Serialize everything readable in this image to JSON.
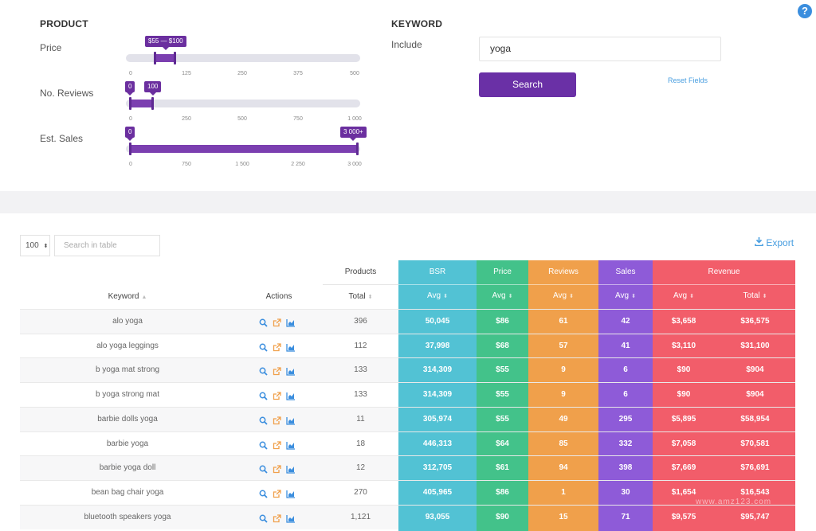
{
  "filters": {
    "product_title": "PRODUCT",
    "price": {
      "label": "Price",
      "bubble": "$55 — $100",
      "ticks": [
        "0",
        "125",
        "250",
        "375",
        "500"
      ],
      "range": [
        55,
        100
      ],
      "max": 500
    },
    "reviews": {
      "label": "No. Reviews",
      "bubble_min": "0",
      "bubble_max": "100",
      "ticks": [
        "0",
        "250",
        "500",
        "750",
        "1 000"
      ],
      "range": [
        0,
        100
      ],
      "max": 1000
    },
    "sales": {
      "label": "Est. Sales",
      "bubble_min": "0",
      "bubble_max": "3 000+",
      "ticks": [
        "0",
        "750",
        "1 500",
        "2 250",
        "3 000"
      ],
      "range": [
        0,
        3000
      ],
      "max": 3000
    }
  },
  "keyword": {
    "title": "KEYWORD",
    "include_label": "Include",
    "include_value": "yoga",
    "search_button": "Search",
    "reset_link": "Reset Fields"
  },
  "help_icon": "?",
  "table_controls": {
    "page_size": "100",
    "search_placeholder": "Search in table",
    "export": "Export"
  },
  "colors": {
    "bsr": "#52c2d4",
    "price": "#43c28a",
    "reviews": "#f0a04b",
    "sales": "#8e5bd8",
    "revenue": "#f25d6a",
    "accent": "#6a30a6"
  },
  "table": {
    "group_headers": {
      "products": "Products",
      "bsr": "BSR",
      "price": "Price",
      "reviews": "Reviews",
      "sales": "Sales",
      "revenue": "Revenue"
    },
    "columns": {
      "keyword": "Keyword",
      "actions": "Actions",
      "total": "Total",
      "bsr_avg": "Avg",
      "price_avg": "Avg",
      "reviews_avg": "Avg",
      "sales_avg": "Avg",
      "revenue_avg": "Avg",
      "revenue_total": "Total"
    },
    "rows": [
      {
        "keyword": "alo yoga",
        "total": "396",
        "bsr": "50,045",
        "price": "$86",
        "reviews": "61",
        "sales": "42",
        "rev_avg": "$3,658",
        "rev_total": "$36,575"
      },
      {
        "keyword": "alo yoga leggings",
        "total": "112",
        "bsr": "37,998",
        "price": "$68",
        "reviews": "57",
        "sales": "41",
        "rev_avg": "$3,110",
        "rev_total": "$31,100"
      },
      {
        "keyword": "b yoga mat strong",
        "total": "133",
        "bsr": "314,309",
        "price": "$55",
        "reviews": "9",
        "sales": "6",
        "rev_avg": "$90",
        "rev_total": "$904"
      },
      {
        "keyword": "b yoga strong mat",
        "total": "133",
        "bsr": "314,309",
        "price": "$55",
        "reviews": "9",
        "sales": "6",
        "rev_avg": "$90",
        "rev_total": "$904"
      },
      {
        "keyword": "barbie dolls yoga",
        "total": "11",
        "bsr": "305,974",
        "price": "$55",
        "reviews": "49",
        "sales": "295",
        "rev_avg": "$5,895",
        "rev_total": "$58,954"
      },
      {
        "keyword": "barbie yoga",
        "total": "18",
        "bsr": "446,313",
        "price": "$64",
        "reviews": "85",
        "sales": "332",
        "rev_avg": "$7,058",
        "rev_total": "$70,581"
      },
      {
        "keyword": "barbie yoga doll",
        "total": "12",
        "bsr": "312,705",
        "price": "$61",
        "reviews": "94",
        "sales": "398",
        "rev_avg": "$7,669",
        "rev_total": "$76,691"
      },
      {
        "keyword": "bean bag chair yoga",
        "total": "270",
        "bsr": "405,965",
        "price": "$86",
        "reviews": "1",
        "sales": "30",
        "rev_avg": "$1,654",
        "rev_total": "$16,543"
      },
      {
        "keyword": "bluetooth speakers yoga",
        "total": "1,121",
        "bsr": "93,055",
        "price": "$90",
        "reviews": "15",
        "sales": "71",
        "rev_avg": "$9,575",
        "rev_total": "$95,747"
      }
    ]
  },
  "watermark": "www.amz123.com"
}
